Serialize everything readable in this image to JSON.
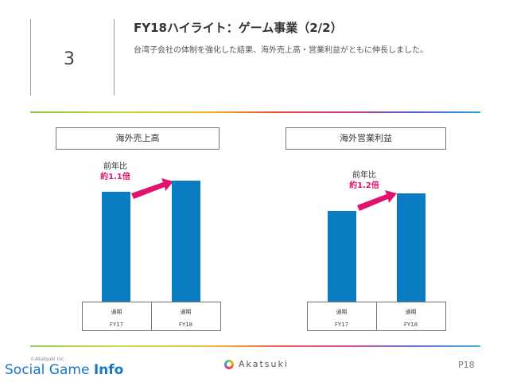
{
  "header": {
    "section_number": "3",
    "title": "FY18ハイライト：ゲーム事業（2/2）",
    "subtitle": "台湾子会社の体制を強化した結果、海外売上高・営業利益がともに伸長しました。"
  },
  "charts": [
    {
      "title": "海外売上高",
      "yoy_label": "前年比",
      "yoy_value": "約1.1倍",
      "columns": [
        {
          "period": "通期",
          "fy": "FY17"
        },
        {
          "period": "通期",
          "fy": "FY18"
        }
      ]
    },
    {
      "title": "海外営業利益",
      "yoy_label": "前年比",
      "yoy_value": "約1.2倍",
      "columns": [
        {
          "period": "通期",
          "fy": "FY17"
        },
        {
          "period": "通期",
          "fy": "FY18"
        }
      ]
    }
  ],
  "chart_data": [
    {
      "type": "bar",
      "categories": [
        "FY17",
        "FY18"
      ],
      "values": [
        1.0,
        1.1
      ],
      "ylim": [
        0,
        1.2
      ],
      "color": "#0a7cc2"
    },
    {
      "type": "bar",
      "categories": [
        "FY17",
        "FY18"
      ],
      "values": [
        1.0,
        1.2
      ],
      "ylim": [
        0,
        1.4
      ],
      "color": "#0a7cc2"
    }
  ],
  "footer": {
    "copyright": "©Akatsuki Inc.",
    "logo_text": "Akatsuki",
    "page_number": "P18",
    "watermark_prefix": "Social Game ",
    "watermark_bold": "Info"
  },
  "colors": {
    "bar": "#0a7cc2",
    "accent": "#e0146f"
  }
}
